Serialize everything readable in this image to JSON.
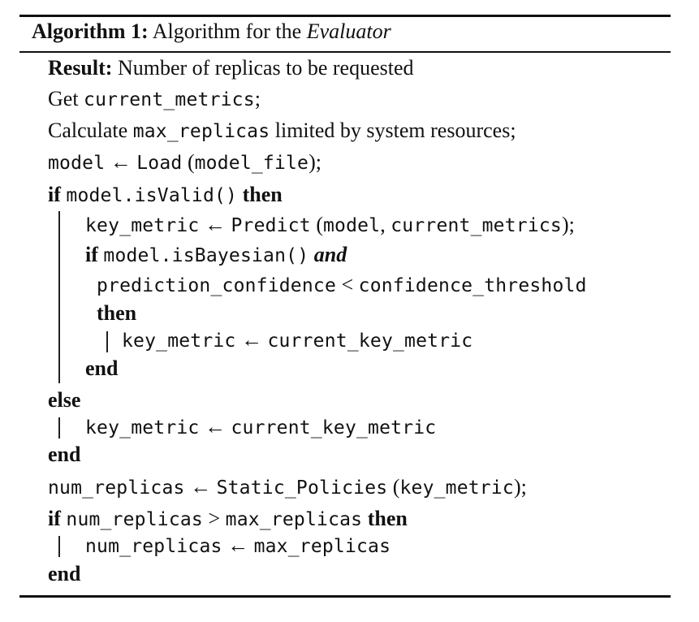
{
  "caption": {
    "label": "Algorithm 1:",
    "text": "Algorithm for the",
    "name": "Evaluator"
  },
  "keywords": {
    "result": "Result:",
    "if": "if",
    "then": "then",
    "else": "else",
    "end": "end",
    "and": "and"
  },
  "lines": {
    "result_text": "Number of replicas to be requested",
    "get": "Get",
    "current_metrics": "current_metrics",
    "semicolon": ";",
    "calculate": "Calculate",
    "max_replicas": "max_replicas",
    "limited_text": "limited by system resources;",
    "model": "model",
    "arrow": "←",
    "load": "Load",
    "model_file": "model_file",
    "load_args_close": ");",
    "model_isvalid": "model.isValid()",
    "key_metric": "key_metric",
    "predict": "Predict",
    "predict_args_sep": ", ",
    "model_isbayesian": "model.isBayesian()",
    "prediction_confidence": "prediction_confidence",
    "less_than": "<",
    "confidence_threshold": "confidence_threshold",
    "current_key_metric": "current_key_metric",
    "num_replicas": "num_replicas",
    "static_policies": "Static_Policies",
    "greater_than": ">",
    "open_paren": "(",
    "close_paren_semicolon": ");"
  }
}
